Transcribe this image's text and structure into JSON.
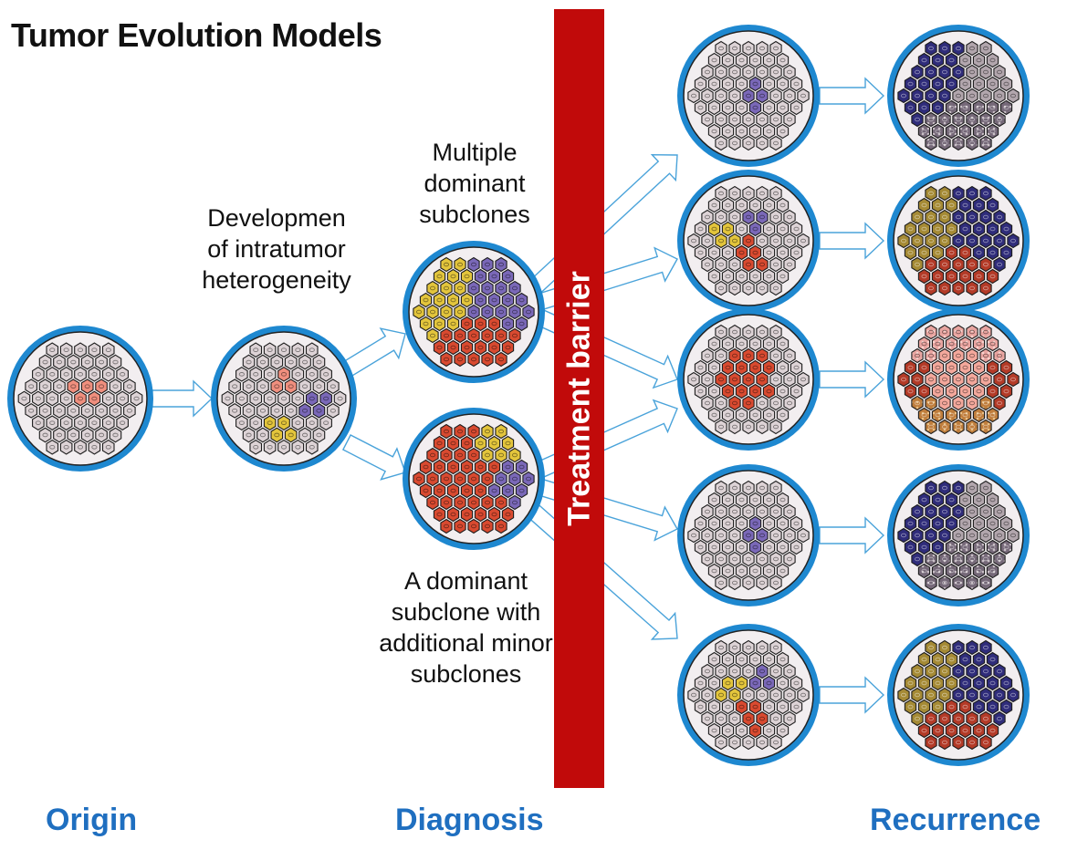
{
  "title": "Tumor Evolution Models",
  "labels": {
    "development": "Developmen\nof intratumor\nheterogeneity",
    "multiple": "Multiple\ndominant\nsubclones",
    "dominant": "A dominant\nsubclone with\nadditional minor\nsubclones"
  },
  "barrier": "Treatment barrier",
  "stages": {
    "origin": "Origin",
    "diagnosis": "Diagnosis",
    "recurrence": "Recurrence"
  },
  "colors": {
    "ring": "#1e88d0",
    "cell_normal": "#ddd3d6",
    "yellow": "#e3c53c",
    "purple": "#7a68b8",
    "red": "#d94a30",
    "pink": "#f08f7e",
    "dark_blue": "#2f2c7a",
    "gray": "#b2a6ad",
    "dark_gray": "#756878",
    "olive": "#a58a35",
    "dark_red": "#b33a27",
    "salmon": "#f4a89c",
    "brown": "#bf7d3c",
    "arrow": "#4aa3da",
    "barrier": "#c10a0a",
    "stage_label": "#1f6fc0"
  }
}
